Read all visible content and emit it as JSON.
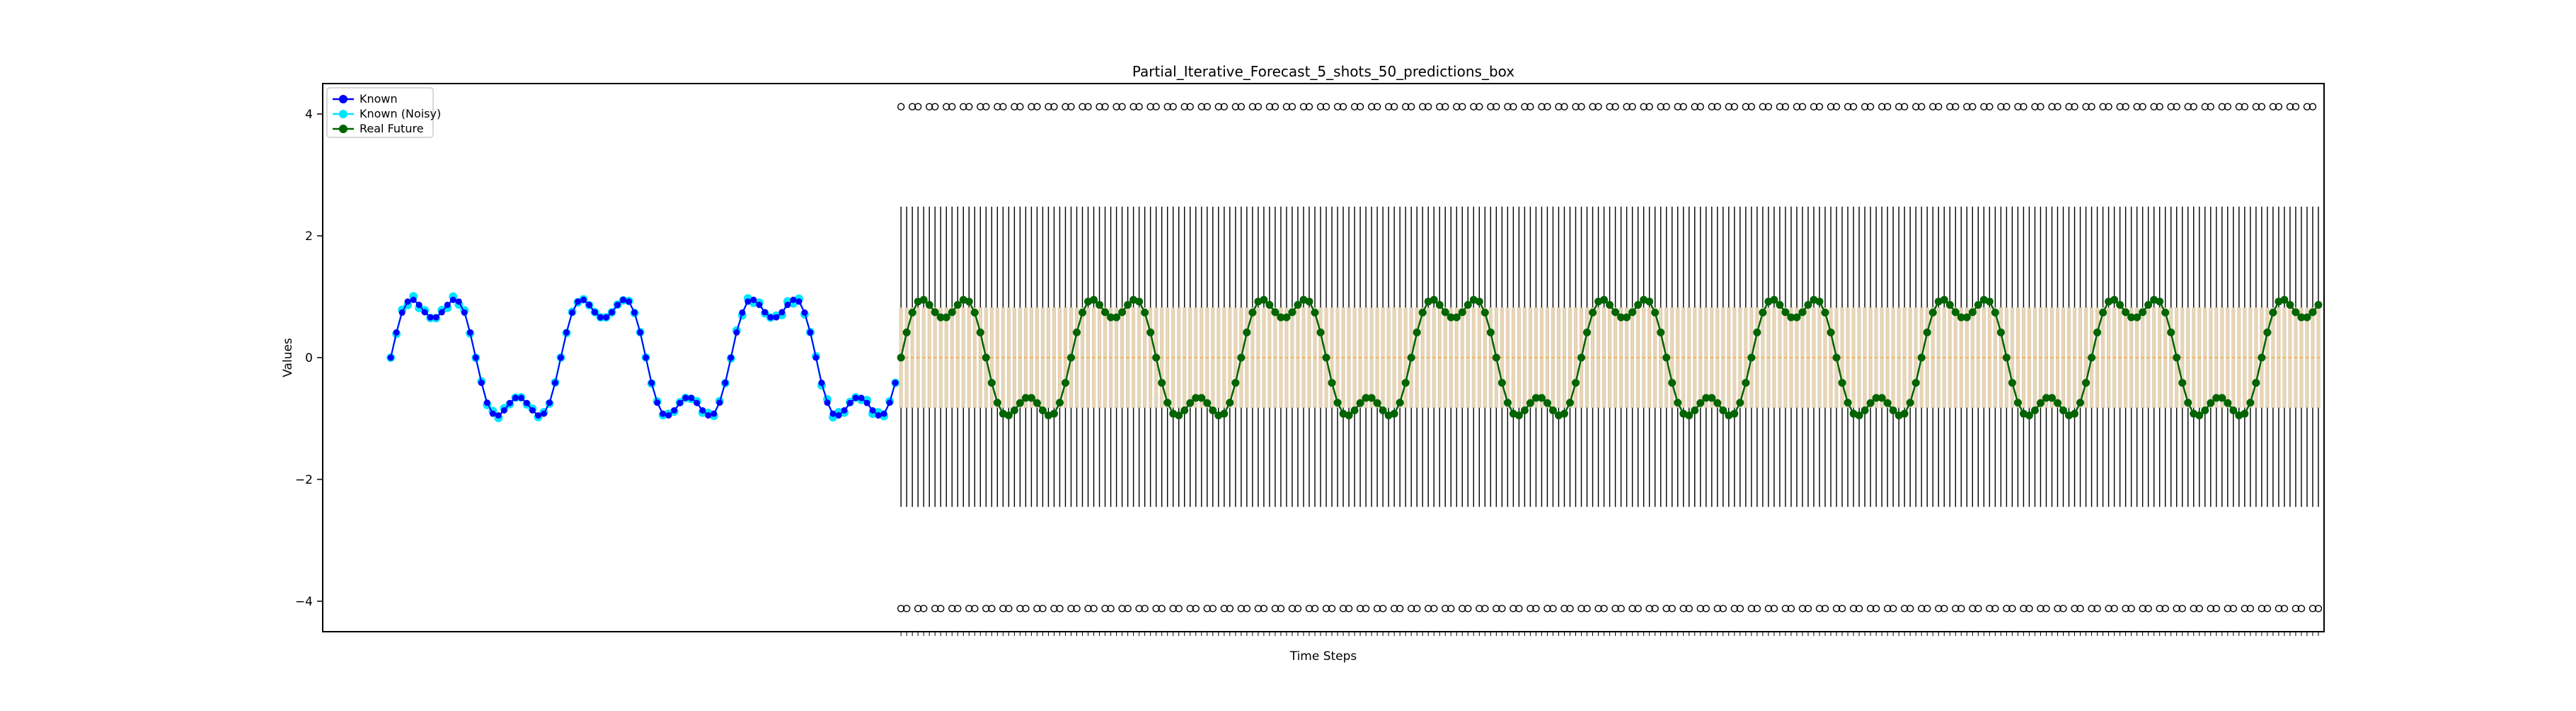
{
  "chart_data": {
    "type": "line",
    "title": "Partial_Iterative_Forecast_5_shots_50_predictions_box",
    "xlabel": "Time Steps",
    "ylabel": "Values",
    "ylim": [
      -4.5,
      4.5
    ],
    "yticks": [
      -4,
      -2,
      0,
      2,
      4
    ],
    "ytick_labels": [
      "−4",
      "−2",
      "0",
      "2",
      "4"
    ],
    "legend": {
      "placement": "upper-left",
      "entries": [
        "Known",
        "Known (Noisy)",
        "Real Future"
      ]
    },
    "grid": false,
    "signal": {
      "description_free": true,
      "amp1": 1.0,
      "period1": 30,
      "amp2": 0.35,
      "period2": 10
    },
    "series": [
      {
        "name": "Known",
        "x_start": 0,
        "x_end": 89,
        "color": "#0000ff",
        "marker": "circle"
      },
      {
        "name": "Known (Noisy)",
        "x_start": 0,
        "x_end": 89,
        "color": "#00e5ff",
        "marker": "circle"
      },
      {
        "name": "Real Future",
        "x_start": 90,
        "x_end": 340,
        "color": "#006400",
        "marker": "circle"
      }
    ],
    "boxplot": {
      "x_start": 90,
      "x_end": 340,
      "box_color": "#e8d6b8",
      "median_color": "#ff8c00",
      "box_low": -0.82,
      "box_high": 0.82,
      "whisker_low": -2.45,
      "whisker_high": 2.48,
      "flier_low": -4.12,
      "flier_high": 4.12
    },
    "xlim": [
      -12,
      341
    ]
  },
  "colors": {
    "known": "#0000ff",
    "known_noisy": "#00e5ff",
    "real_future": "#006400",
    "box_fill": "#e8d6b8"
  }
}
